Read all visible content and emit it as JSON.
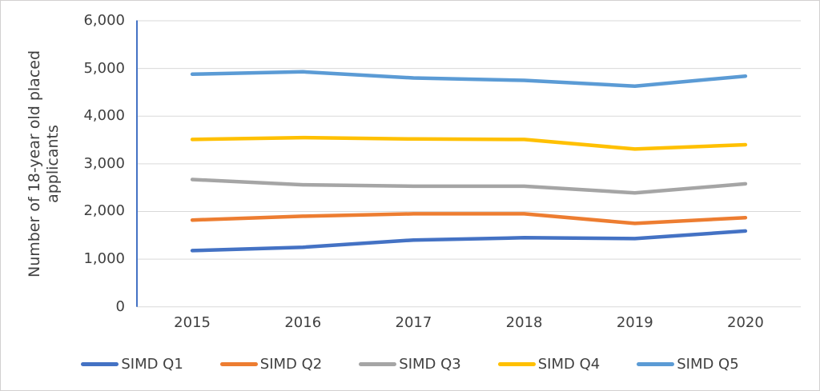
{
  "colors": {
    "axis_line": "#4472c4",
    "gridline": "#d9d9d9",
    "text": "#404040",
    "frame_border": "#d2d0d0",
    "background": "#ffffff"
  },
  "chart_data": {
    "type": "line",
    "title": "",
    "xlabel": "",
    "ylabel": "Number of 18-year old placed applicants",
    "ylabel_lines": "Number of 18-year old placed\napplicants",
    "categories": [
      "2015",
      "2016",
      "2017",
      "2018",
      "2019",
      "2020"
    ],
    "ylim": [
      0,
      6000
    ],
    "ytick_step": 1000,
    "ytick_labels": [
      "0",
      "1,000",
      "2,000",
      "3,000",
      "4,000",
      "5,000",
      "6,000"
    ],
    "grid": "horizontal",
    "legend_position": "bottom",
    "series": [
      {
        "name": "SIMD Q1",
        "color": "#4472c4",
        "values": [
          1180,
          1250,
          1400,
          1450,
          1430,
          1590
        ]
      },
      {
        "name": "SIMD Q2",
        "color": "#ed7d31",
        "values": [
          1820,
          1900,
          1950,
          1950,
          1750,
          1870
        ]
      },
      {
        "name": "SIMD Q3",
        "color": "#a5a5a5",
        "values": [
          2670,
          2560,
          2530,
          2530,
          2390,
          2580
        ]
      },
      {
        "name": "SIMD Q4",
        "color": "#ffc000",
        "values": [
          3510,
          3550,
          3520,
          3510,
          3310,
          3400
        ]
      },
      {
        "name": "SIMD Q5",
        "color": "#5b9bd5",
        "values": [
          4880,
          4930,
          4800,
          4750,
          4630,
          4840
        ]
      }
    ]
  }
}
